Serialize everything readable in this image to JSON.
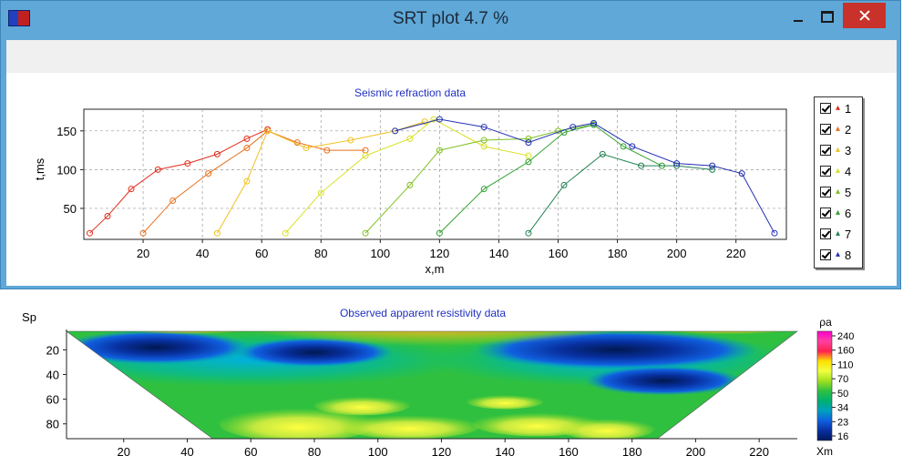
{
  "window": {
    "title": "SRT plot 4.7 %"
  },
  "chart_data": [
    {
      "type": "line",
      "title": "Seismic refraction data",
      "xlabel": "x,m",
      "ylabel": "t,ms",
      "xlim": [
        0,
        237
      ],
      "ylim": [
        10,
        178
      ],
      "x_ticks": [
        20,
        40,
        60,
        80,
        100,
        120,
        140,
        160,
        180,
        200,
        220
      ],
      "y_ticks": [
        50,
        100,
        150
      ],
      "grid": true,
      "legend_position": "right",
      "series": [
        {
          "name": "1",
          "color": "#e0301e",
          "x": [
            2,
            8,
            16,
            25,
            35,
            45,
            55,
            62
          ],
          "values": [
            18,
            40,
            75,
            100,
            108,
            120,
            140,
            152
          ]
        },
        {
          "name": "2",
          "color": "#e8701c",
          "x": [
            20,
            30,
            42,
            55,
            62,
            72,
            82,
            95
          ],
          "values": [
            18,
            60,
            95,
            128,
            150,
            135,
            125,
            125
          ]
        },
        {
          "name": "3",
          "color": "#f0c020",
          "x": [
            45,
            55,
            62,
            75,
            90,
            105,
            115
          ],
          "values": [
            18,
            85,
            150,
            128,
            138,
            150,
            162
          ]
        },
        {
          "name": "4",
          "color": "#d8e020",
          "x": [
            68,
            80,
            95,
            110,
            118,
            135,
            150
          ],
          "values": [
            18,
            70,
            118,
            140,
            165,
            130,
            118
          ]
        },
        {
          "name": "5",
          "color": "#80c020",
          "x": [
            95,
            110,
            120,
            135,
            150,
            160,
            172
          ],
          "values": [
            18,
            80,
            125,
            138,
            140,
            150,
            158
          ]
        },
        {
          "name": "6",
          "color": "#30a030",
          "x": [
            120,
            135,
            150,
            162,
            172,
            182,
            195
          ],
          "values": [
            18,
            75,
            110,
            148,
            158,
            130,
            105
          ]
        },
        {
          "name": "7",
          "color": "#208050",
          "x": [
            150,
            162,
            175,
            188,
            200,
            212
          ],
          "values": [
            18,
            80,
            120,
            105,
            105,
            100
          ]
        },
        {
          "name": "8",
          "color": "#2030b0",
          "x": [
            105,
            120,
            135,
            150,
            165,
            172,
            185,
            200,
            212,
            222,
            233
          ],
          "values": [
            150,
            165,
            155,
            135,
            155,
            160,
            130,
            108,
            105,
            95,
            18
          ]
        }
      ]
    },
    {
      "type": "heatmap",
      "title": "Observed apparent resistivity data",
      "xlabel": "Xm",
      "ylabel": "Sp",
      "xlim": [
        2,
        232
      ],
      "ylim": [
        5,
        92
      ],
      "x_ticks": [
        20,
        40,
        60,
        80,
        100,
        120,
        140,
        160,
        180,
        200,
        220
      ],
      "y_ticks": [
        20,
        40,
        60,
        80
      ],
      "colorbar_label": "ρa",
      "colorbar_ticks": [
        "240",
        "160",
        "110",
        "70",
        "50",
        "34",
        "23",
        "16"
      ],
      "colorbar_colors": [
        "#ff00d0",
        "#ff40a0",
        "#ff2050",
        "#ffe000",
        "#f0ff40",
        "#a0e020",
        "#30c040",
        "#00b070",
        "#00a0c0",
        "#1060e0",
        "#0830a0",
        "#001860"
      ]
    }
  ]
}
